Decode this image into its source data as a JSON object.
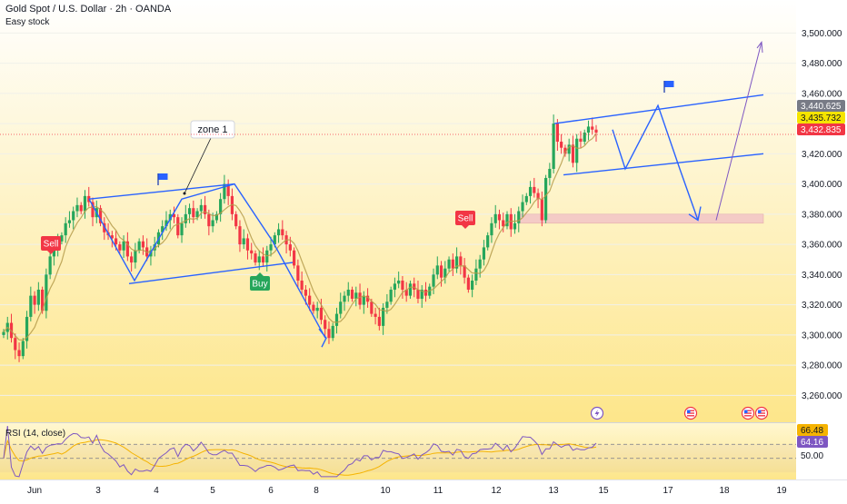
{
  "header": {
    "symbol_title": "Gold Spot / U.S. Dollar · 2h · OANDA",
    "indicator_name": "Easy stock"
  },
  "rsi": {
    "label": "RSI (14, close)",
    "value": "64.16",
    "ma_value": "66.48",
    "level_50": "50.00",
    "line_color": "#7e57c2",
    "ma_color": "#f5b301"
  },
  "price_tags": [
    {
      "value": "3,440.625",
      "bg": "#787b86",
      "fg": "#ffffff"
    },
    {
      "value": "3,435.732",
      "bg": "#f5e400",
      "fg": "#131722"
    },
    {
      "value": "3,432.835",
      "bg": "#f23645",
      "fg": "#ffffff"
    }
  ],
  "signals": [
    {
      "text": "Sell",
      "color": "#f23645"
    },
    {
      "text": "Sell",
      "color": "#f23645"
    },
    {
      "text": "Buy",
      "color": "#26a65b"
    }
  ],
  "annotations": {
    "callout": "zone 1"
  },
  "colors": {
    "bull": "#26a65b",
    "bear": "#f23645",
    "drawing": "#2962ff",
    "ma": "#b59b4a",
    "background_top": "#ffffff",
    "background_bottom": "#fde68a"
  },
  "event_icons": [
    "lightning-icon",
    "us-flag-icon",
    "us-flag-icon",
    "us-flag-icon"
  ],
  "chart_data": {
    "type": "candlestick",
    "title": "Gold Spot / U.S. Dollar · 2h · OANDA",
    "ylim": [
      3250,
      3505
    ],
    "y_ticks": [
      3260,
      3280,
      3300,
      3320,
      3340,
      3360,
      3380,
      3400,
      3420,
      3440,
      3460,
      3480,
      3500
    ],
    "y_tick_labels": [
      "3,260.000",
      "3,280.000",
      "3,300.000",
      "3,320.000",
      "3,340.000",
      "3,360.000",
      "3,380.000",
      "3,400.000",
      "3,420.000",
      "3,440.000",
      "3,460.000",
      "3,480.000",
      "3,500.000"
    ],
    "x_tick_labels": [
      "Jun",
      "3",
      "4",
      "5",
      "6",
      "8",
      "10",
      "11",
      "12",
      "13",
      "15",
      "17",
      "18",
      "19"
    ],
    "close": [
      3302,
      3308,
      3298,
      3290,
      3286,
      3296,
      3312,
      3326,
      3320,
      3330,
      3316,
      3340,
      3352,
      3356,
      3362,
      3366,
      3374,
      3376,
      3382,
      3386,
      3382,
      3392,
      3388,
      3378,
      3384,
      3374,
      3368,
      3366,
      3364,
      3360,
      3356,
      3362,
      3352,
      3348,
      3356,
      3362,
      3358,
      3352,
      3356,
      3360,
      3368,
      3372,
      3376,
      3380,
      3378,
      3366,
      3374,
      3380,
      3384,
      3378,
      3382,
      3386,
      3380,
      3372,
      3376,
      3380,
      3390,
      3400,
      3392,
      3380,
      3372,
      3360,
      3364,
      3356,
      3354,
      3348,
      3352,
      3348,
      3356,
      3360,
      3366,
      3370,
      3366,
      3360,
      3356,
      3346,
      3336,
      3330,
      3326,
      3320,
      3316,
      3318,
      3310,
      3304,
      3298,
      3306,
      3314,
      3322,
      3326,
      3330,
      3324,
      3328,
      3320,
      3326,
      3322,
      3314,
      3312,
      3306,
      3318,
      3322,
      3330,
      3334,
      3336,
      3330,
      3326,
      3334,
      3330,
      3324,
      3330,
      3326,
      3332,
      3340,
      3346,
      3338,
      3344,
      3350,
      3344,
      3352,
      3346,
      3338,
      3330,
      3336,
      3344,
      3350,
      3358,
      3366,
      3374,
      3380,
      3376,
      3372,
      3380,
      3370,
      3374,
      3382,
      3388,
      3392,
      3398,
      3394,
      3390,
      3376,
      3404,
      3410,
      3440,
      3428,
      3424,
      3420,
      3426,
      3414,
      3430,
      3428,
      3434,
      3438,
      3436,
      3434
    ],
    "rsi_value": 64.16,
    "rsi_ma": 66.48,
    "rsi_levels": [
      50,
      70
    ]
  }
}
